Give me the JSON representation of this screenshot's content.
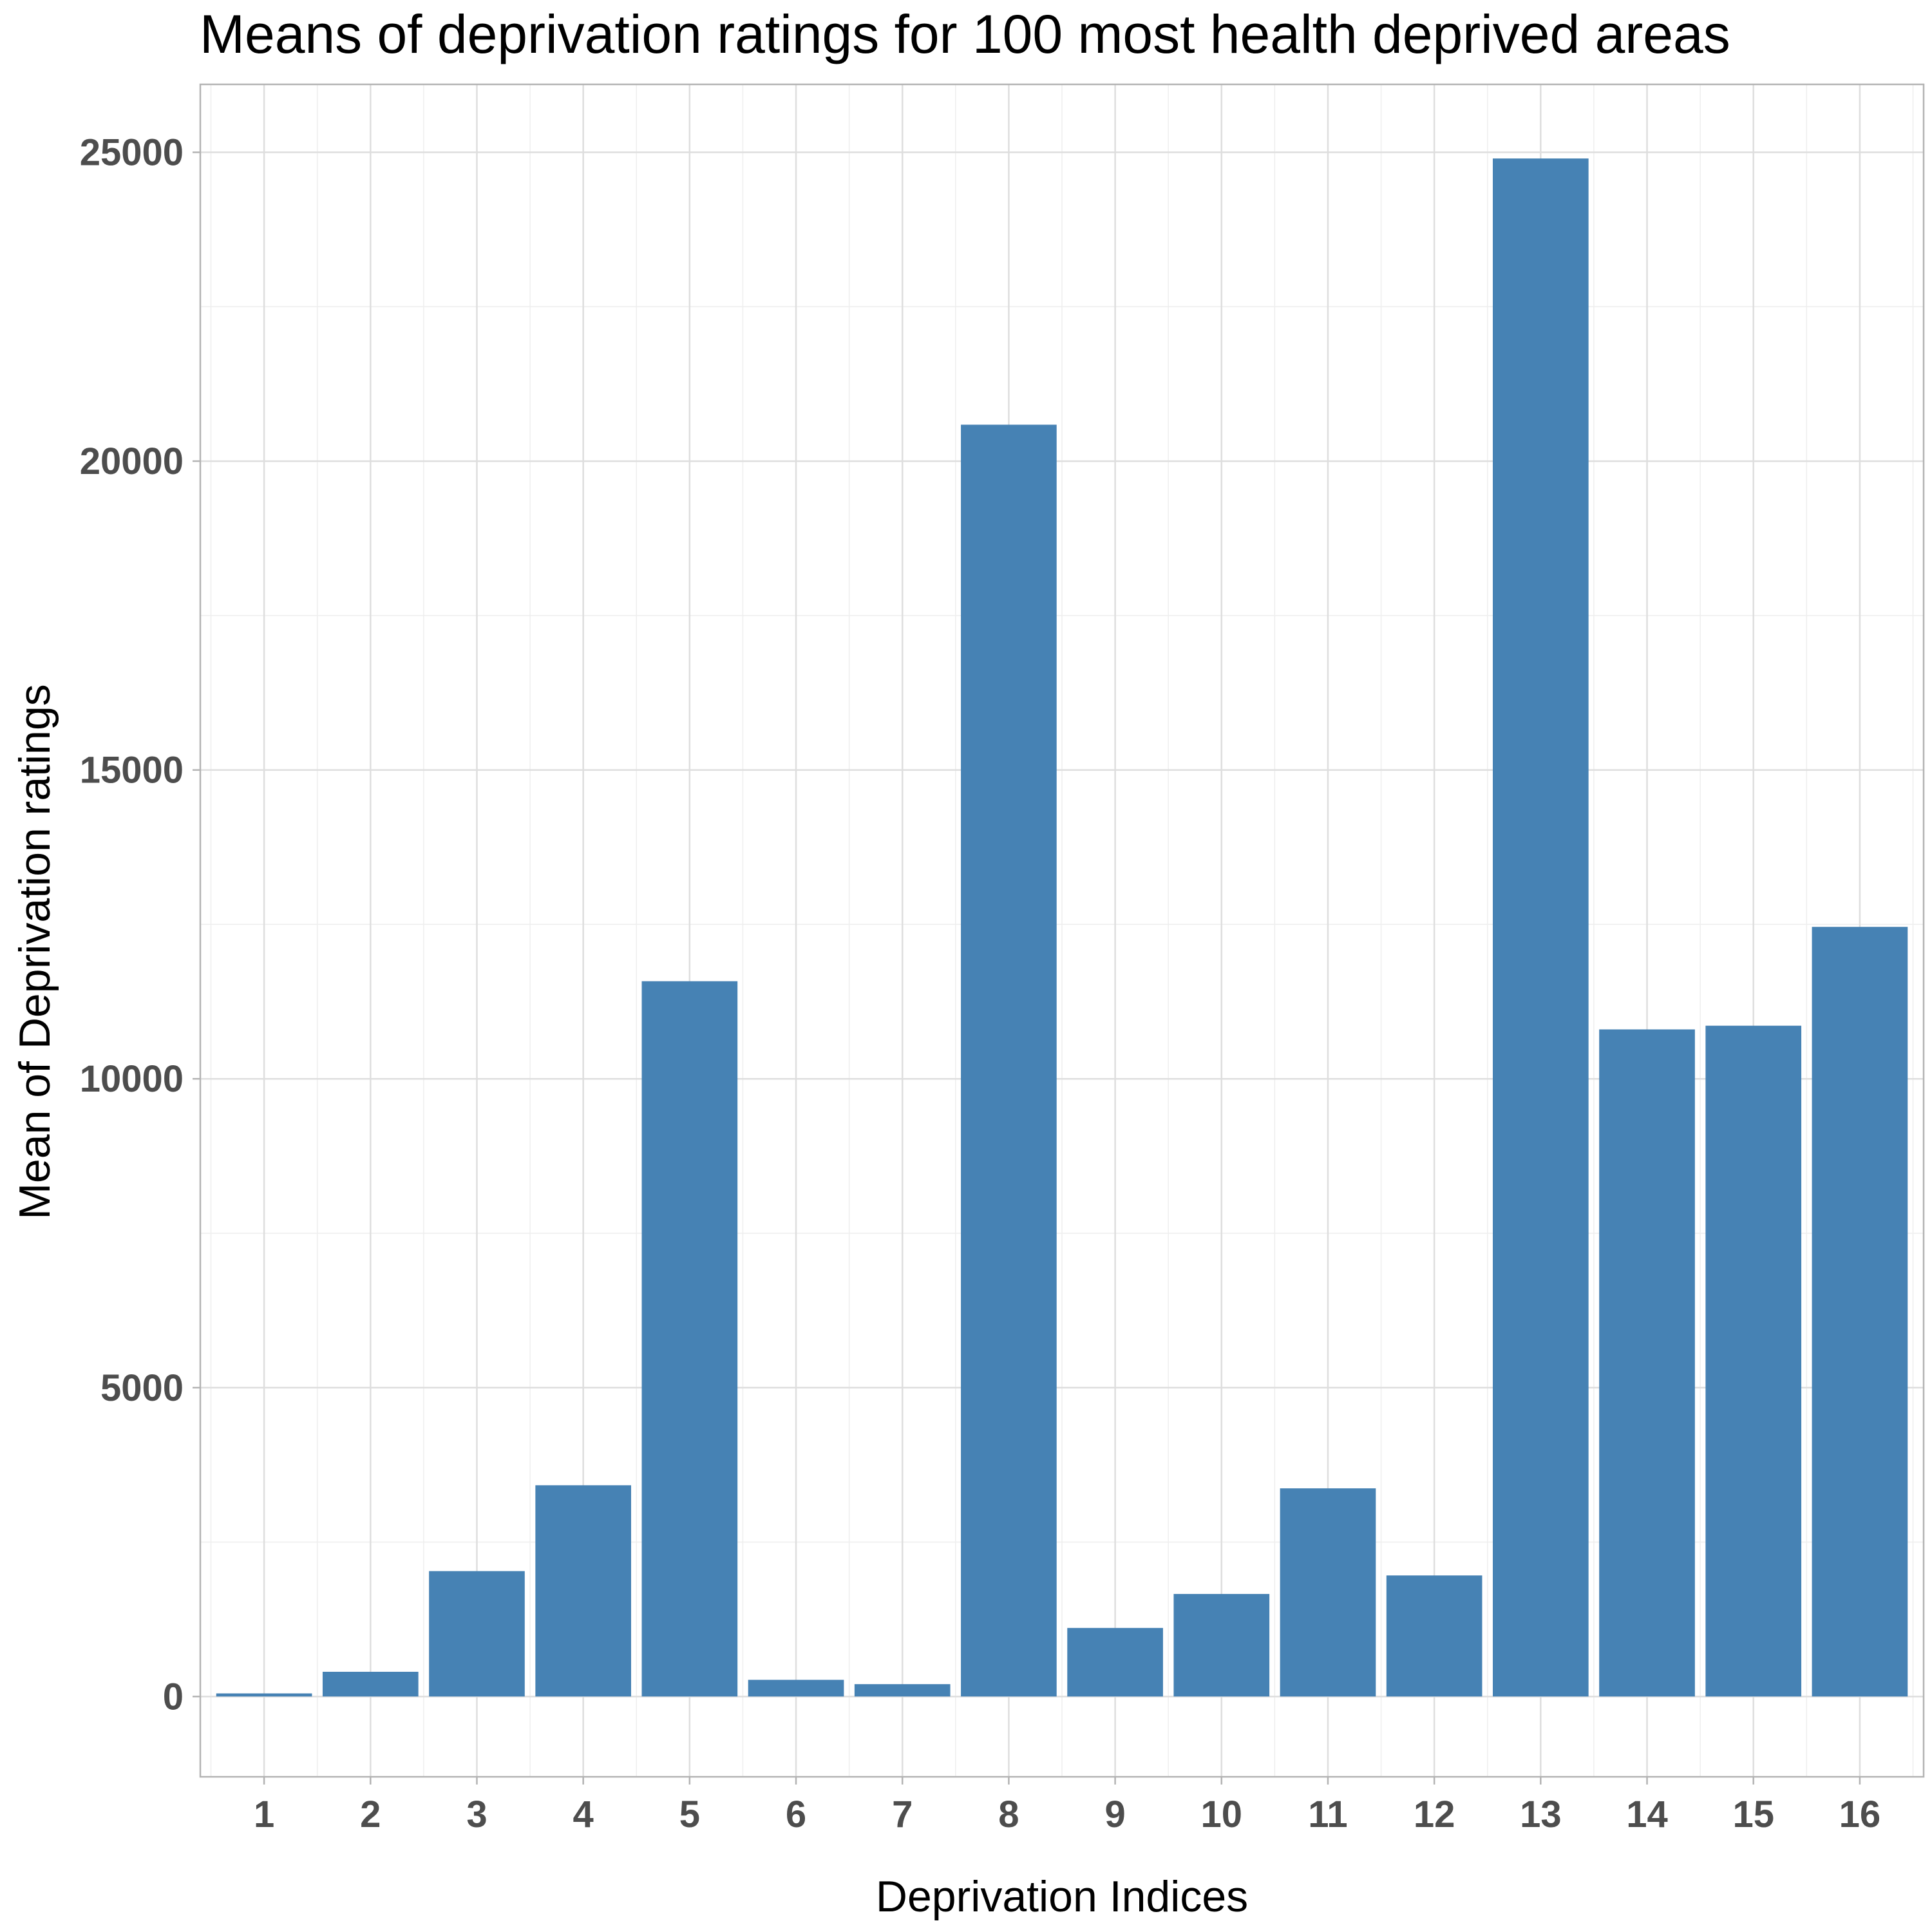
{
  "chart_data": {
    "type": "bar",
    "title": "Means of deprivation ratings for 100 most health deprived areas",
    "xlabel": "Deprivation Indices",
    "ylabel": "Mean of Deprivation ratings",
    "categories": [
      "1",
      "2",
      "3",
      "4",
      "5",
      "6",
      "7",
      "8",
      "9",
      "10",
      "11",
      "12",
      "13",
      "14",
      "15",
      "16"
    ],
    "values": [
      50,
      400,
      2030,
      3420,
      11580,
      270,
      200,
      20590,
      1110,
      1660,
      3370,
      1960,
      24900,
      10800,
      10860,
      12460
    ],
    "ylim": [
      -1300,
      26100
    ],
    "yticks": [
      0,
      5000,
      10000,
      15000,
      20000,
      25000
    ],
    "ytick_labels": [
      "0",
      "5000",
      "10000",
      "15000",
      "20000",
      "25000"
    ],
    "grid": true,
    "bar_color": "#4682b4",
    "legend": "none"
  }
}
